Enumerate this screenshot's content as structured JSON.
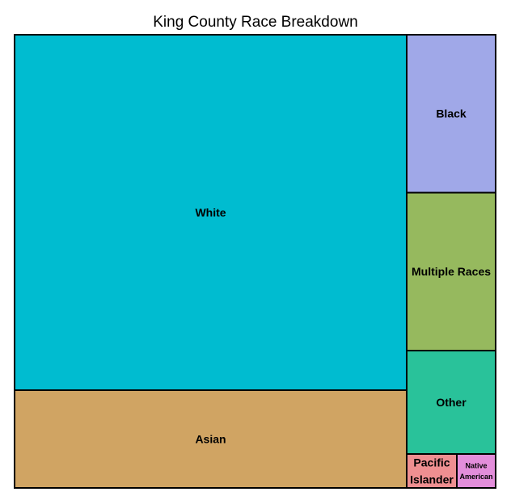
{
  "chart_data": {
    "type": "treemap",
    "title": "King County Race Breakdown",
    "items": [
      {
        "label": "White",
        "value": 61.8,
        "color": "#00BCD0"
      },
      {
        "label": "Asian",
        "value": 15.1,
        "color": "#D0A463"
      },
      {
        "label": "Black",
        "value": 6.4,
        "color": "#A0A8E8"
      },
      {
        "label": "Multiple Races",
        "value": 6.4,
        "color": "#96B95E"
      },
      {
        "label": "Other",
        "value": 4.2,
        "color": "#29C29A"
      },
      {
        "label": "Pacific Islander",
        "label_lines": [
          "Pacific",
          "Islander"
        ],
        "value": 0.8,
        "color": "#EE8F91"
      },
      {
        "label": "Native American",
        "label_lines": [
          "Native",
          "American"
        ],
        "value": 0.7,
        "color": "#E38EDB"
      }
    ]
  }
}
